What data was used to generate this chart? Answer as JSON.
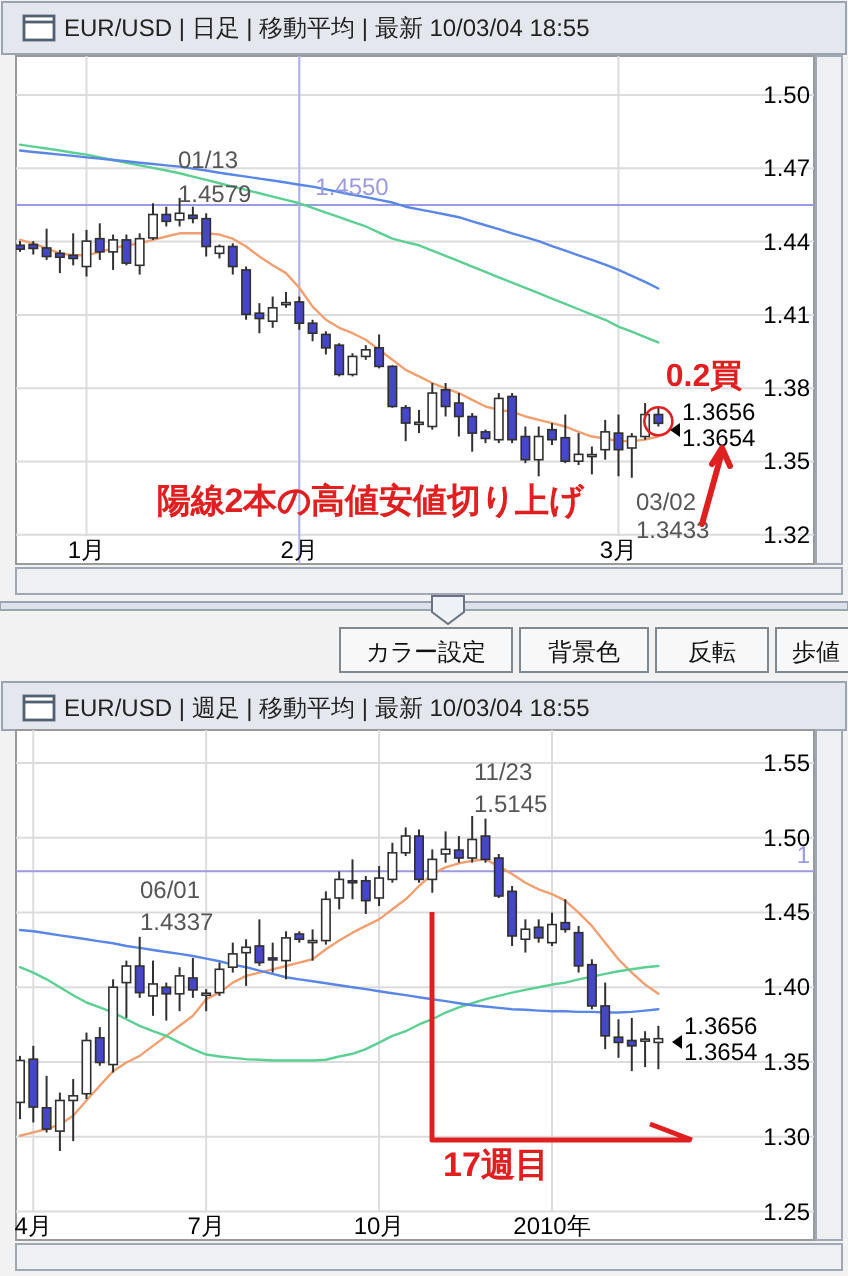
{
  "chart_data": [
    {
      "type": "candlestick",
      "title": "EUR/USD | 日足 | 移動平均 | 最新 10/03/04 18:55",
      "categories": [
        null,
        null,
        null,
        null,
        null,
        "1月",
        null,
        null,
        null,
        null,
        null,
        null,
        null,
        null,
        null,
        null,
        null,
        null,
        null,
        null,
        null,
        "2月",
        null,
        null,
        null,
        null,
        null,
        null,
        null,
        null,
        null,
        null,
        null,
        null,
        null,
        null,
        null,
        null,
        null,
        null,
        null,
        null,
        null,
        null,
        null,
        "3月",
        null,
        null,
        null
      ],
      "ylim": [
        1.308,
        1.516
      ],
      "yticks": [
        {
          "value": 1.5,
          "label": "1.50"
        },
        {
          "value": 1.47,
          "label": "1.47"
        },
        {
          "value": 1.44,
          "label": "1.44"
        },
        {
          "value": 1.41,
          "label": "1.41"
        },
        {
          "value": 1.38,
          "label": "1.38"
        },
        {
          "value": 1.35,
          "label": "1.35"
        },
        {
          "value": 1.32,
          "label": "1.32"
        }
      ],
      "grid": true,
      "ref_lines": [
        {
          "axis": "y",
          "value": 1.455,
          "label": "1.4550",
          "color": "#9a9ae0"
        },
        {
          "axis": "x",
          "value": "2月",
          "color": "#b0b0ea"
        }
      ],
      "series": [
        {
          "type": "line",
          "color": "#f0a070",
          "values": [
            1.4407,
            1.4393,
            1.4372,
            1.4352,
            1.4344,
            1.4344,
            1.4358,
            1.4372,
            1.4385,
            1.4393,
            1.4407,
            1.4421,
            1.4434,
            1.4434,
            1.4434,
            1.4429,
            1.4412,
            1.438,
            1.4339,
            1.4303,
            1.4271,
            1.4211,
            1.4134,
            1.408,
            1.4047,
            1.4025,
            1.3998,
            1.3957,
            1.3916,
            1.3875,
            1.3848,
            1.3821,
            1.3799,
            1.378,
            1.3752,
            1.3725,
            1.3711,
            1.3703,
            1.3684,
            1.367,
            1.3657,
            1.3643,
            1.3621,
            1.3602,
            1.3594,
            1.3583,
            1.3583,
            1.3589,
            1.3602
          ]
        },
        {
          "type": "line",
          "color": "#5ccf93",
          "values": [
            1.4797,
            1.4789,
            1.4781,
            1.4773,
            1.4764,
            1.4756,
            1.4745,
            1.4734,
            1.4723,
            1.4712,
            1.4702,
            1.4691,
            1.468,
            1.4666,
            1.4653,
            1.4639,
            1.4625,
            1.4612,
            1.4598,
            1.4584,
            1.4571,
            1.4557,
            1.4538,
            1.4519,
            1.45,
            1.4481,
            1.4462,
            1.4437,
            1.4412,
            1.4398,
            1.4385,
            1.4363,
            1.4342,
            1.432,
            1.4298,
            1.4276,
            1.4254,
            1.4232,
            1.4211,
            1.4189,
            1.4167,
            1.4145,
            1.4123,
            1.4101,
            1.408,
            1.4052,
            1.4031,
            1.4009,
            1.3987
          ]
        },
        {
          "type": "line",
          "color": "#5a86e6",
          "values": [
            1.4773,
            1.4767,
            1.4762,
            1.4756,
            1.4751,
            1.4745,
            1.474,
            1.4734,
            1.4729,
            1.4723,
            1.4718,
            1.4712,
            1.4707,
            1.4699,
            1.4691,
            1.4682,
            1.4674,
            1.4666,
            1.4658,
            1.465,
            1.4642,
            1.4633,
            1.4625,
            1.4614,
            1.4603,
            1.4592,
            1.4582,
            1.4571,
            1.456,
            1.4543,
            1.4532,
            1.4522,
            1.4511,
            1.45,
            1.4483,
            1.4467,
            1.4451,
            1.4434,
            1.4418,
            1.4402,
            1.4382,
            1.4363,
            1.4344,
            1.4325,
            1.4306,
            1.4284,
            1.426,
            1.4235,
            1.4208
          ]
        },
        {
          "type": "candlestick",
          "colors": [
            "#4646c8",
            "#4646c8",
            "#4646c8",
            "#4646c8",
            "#4646c8",
            "#ffffff",
            "#4646c8",
            "#ffffff",
            "#4646c8",
            "#ffffff",
            "#ffffff",
            "#4646c8",
            "#ffffff",
            "#4646c8",
            "#4646c8",
            "#ffffff",
            "#4646c8",
            "#4646c8",
            "#4646c8",
            "#ffffff",
            "#ffffff",
            "#4646c8",
            "#4646c8",
            "#4646c8",
            "#4646c8",
            "#ffffff",
            "#ffffff",
            "#4646c8",
            "#4646c8",
            "#4646c8",
            "#ffffff",
            "#ffffff",
            "#4646c8",
            "#4646c8",
            "#4646c8",
            "#4646c8",
            "#ffffff",
            "#4646c8",
            "#4646c8",
            "#ffffff",
            "#4646c8",
            "#4646c8",
            "#ffffff",
            "#ffffff",
            "#ffffff",
            "#4646c8",
            "#ffffff",
            "#ffffff",
            "#4646c8"
          ],
          "ohlc": [
            [
              1.4385,
              1.4402,
              1.4358,
              1.4369
            ],
            [
              1.4388,
              1.4402,
              1.4347,
              1.4372
            ],
            [
              1.4374,
              1.4453,
              1.4325,
              1.4339
            ],
            [
              1.4352,
              1.4366,
              1.4271,
              1.4336
            ],
            [
              1.4344,
              1.4434,
              1.4303,
              1.4331
            ],
            [
              1.4298,
              1.4448,
              1.4257,
              1.4402
            ],
            [
              1.4412,
              1.4475,
              1.4325,
              1.4358
            ],
            [
              1.4358,
              1.4429,
              1.4284,
              1.4407
            ],
            [
              1.4407,
              1.4429,
              1.4303,
              1.4312
            ],
            [
              1.4303,
              1.4434,
              1.4265,
              1.4412
            ],
            [
              1.4415,
              1.4557,
              1.4407,
              1.4511
            ],
            [
              1.4511,
              1.4543,
              1.4462,
              1.4483
            ],
            [
              1.4489,
              1.4579,
              1.4462,
              1.4516
            ],
            [
              1.4508,
              1.4543,
              1.4475,
              1.4495
            ],
            [
              1.4494,
              1.4516,
              1.4339,
              1.438
            ],
            [
              1.4352,
              1.4388,
              1.4331,
              1.438
            ],
            [
              1.438,
              1.4393,
              1.4265,
              1.4298
            ],
            [
              1.4284,
              1.4298,
              1.408,
              1.4102
            ],
            [
              1.4107,
              1.4148,
              1.4025,
              1.4085
            ],
            [
              1.4074,
              1.4175,
              1.4047,
              1.4129
            ],
            [
              1.4148,
              1.4194,
              1.4129,
              1.415
            ],
            [
              1.4153,
              1.4175,
              1.4039,
              1.4066
            ],
            [
              1.4066,
              1.408,
              1.3992,
              1.4025
            ],
            [
              1.402,
              1.4033,
              1.3938,
              1.3965
            ],
            [
              1.3976,
              1.3984,
              1.3848,
              1.3856
            ],
            [
              1.3856,
              1.3943,
              1.3848,
              1.393
            ],
            [
              1.393,
              1.3976,
              1.3916,
              1.3957
            ],
            [
              1.3965,
              1.402,
              1.3881,
              1.3889
            ],
            [
              1.3889,
              1.3894,
              1.372,
              1.3725
            ],
            [
              1.372,
              1.3731,
              1.3583,
              1.3657
            ],
            [
              1.3657,
              1.3711,
              1.3616,
              1.366
            ],
            [
              1.3643,
              1.3821,
              1.363,
              1.378
            ],
            [
              1.3793,
              1.3821,
              1.3684,
              1.3725
            ],
            [
              1.3739,
              1.378,
              1.3602,
              1.3684
            ],
            [
              1.3684,
              1.3698,
              1.354,
              1.3616
            ],
            [
              1.3621,
              1.363,
              1.3575,
              1.3594
            ],
            [
              1.3589,
              1.378,
              1.3575,
              1.3758
            ],
            [
              1.3766,
              1.378,
              1.3575,
              1.3589
            ],
            [
              1.3602,
              1.3643,
              1.3493,
              1.3507
            ],
            [
              1.3507,
              1.3643,
              1.3439,
              1.3602
            ],
            [
              1.363,
              1.3657,
              1.3567,
              1.3589
            ],
            [
              1.3597,
              1.3692,
              1.3493,
              1.3501
            ],
            [
              1.3501,
              1.3616,
              1.3485,
              1.3529
            ],
            [
              1.3526,
              1.3561,
              1.3447,
              1.3528
            ],
            [
              1.3548,
              1.367,
              1.3507,
              1.3621
            ],
            [
              1.3616,
              1.3692,
              1.3439,
              1.3548
            ],
            [
              1.3555,
              1.3616,
              1.3433,
              1.3602
            ],
            [
              1.3602,
              1.3739,
              1.3589,
              1.3692
            ],
            [
              1.3692,
              1.3719,
              1.3643,
              1.3656
            ]
          ]
        }
      ],
      "annotations": [
        "01/13",
        "1.4579",
        "03/02",
        "1.3433",
        "1.3656",
        "1.3654",
        "0.2買",
        "陽線2本の高値安値切り上げ"
      ]
    },
    {
      "type": "other",
      "annotations": [
        "カラー設定",
        "背景色",
        "反転",
        "歩値"
      ]
    },
    {
      "type": "candlestick",
      "title": "EUR/USD | 週足 | 移動平均 | 最新 10/03/04 18:55",
      "categories": [
        null,
        "4月",
        null,
        null,
        null,
        null,
        null,
        null,
        null,
        null,
        null,
        null,
        null,
        null,
        "7月",
        null,
        null,
        null,
        null,
        null,
        null,
        null,
        null,
        null,
        null,
        null,
        null,
        "10月",
        null,
        null,
        null,
        null,
        null,
        null,
        null,
        null,
        null,
        null,
        null,
        null,
        "2010年",
        null,
        null,
        null,
        null,
        null,
        null,
        null,
        null
      ],
      "ylim": [
        1.231,
        1.572
      ],
      "yticks": [
        {
          "value": 1.55,
          "label": "1.55"
        },
        {
          "value": 1.5,
          "label": "1.50"
        },
        {
          "value": 1.45,
          "label": "1.45"
        },
        {
          "value": 1.4,
          "label": "1.40"
        },
        {
          "value": 1.35,
          "label": "1.35"
        },
        {
          "value": 1.3,
          "label": "1.30"
        },
        {
          "value": 1.25,
          "label": "1.25"
        }
      ],
      "grid": true,
      "ref_lines": [
        {
          "axis": "y",
          "value": 1.4775,
          "label": "1",
          "color": "#9a9ae0"
        }
      ],
      "series": [
        {
          "type": "line",
          "color": "#f0a070",
          "values": [
            1.3007,
            1.3029,
            1.3052,
            1.3083,
            1.3141,
            1.3243,
            1.3341,
            1.3439,
            1.3497,
            1.3541,
            1.3608,
            1.3675,
            1.3742,
            1.3809,
            1.392,
            1.3964,
            1.4031,
            1.4076,
            1.4098,
            1.412,
            1.4142,
            1.4165,
            1.4187,
            1.4254,
            1.4312,
            1.4365,
            1.441,
            1.4454,
            1.4521,
            1.4588,
            1.4677,
            1.4757,
            1.4801,
            1.4828,
            1.4846,
            1.4855,
            1.481,
            1.4757,
            1.4699,
            1.4654,
            1.4623,
            1.4579,
            1.4499,
            1.441,
            1.4298,
            1.4187,
            1.4098,
            1.4018,
            1.3956
          ]
        },
        {
          "type": "line",
          "color": "#5ccf93",
          "values": [
            1.4134,
            1.4098,
            1.4053,
            1.4,
            1.3947,
            1.3898,
            1.3866,
            1.3831,
            1.3786,
            1.3742,
            1.3706,
            1.3675,
            1.363,
            1.3586,
            1.355,
            1.3537,
            1.3528,
            1.3519,
            1.3515,
            1.351,
            1.351,
            1.351,
            1.351,
            1.3515,
            1.3537,
            1.3555,
            1.3586,
            1.363,
            1.3675,
            1.3706,
            1.3751,
            1.3786,
            1.3831,
            1.3866,
            1.3893,
            1.392,
            1.3942,
            1.3964,
            1.3982,
            1.4,
            1.4018,
            1.4031,
            1.4053,
            1.4071,
            1.4089,
            1.4107,
            1.412,
            1.4134,
            1.4142
          ]
        },
        {
          "type": "line",
          "color": "#5a86e6",
          "values": [
            1.4383,
            1.4374,
            1.4361,
            1.4347,
            1.4334,
            1.4321,
            1.4307,
            1.4294,
            1.4276,
            1.4263,
            1.4249,
            1.4236,
            1.4223,
            1.4209,
            1.4191,
            1.4174,
            1.4151,
            1.4134,
            1.4111,
            1.4089,
            1.4067,
            1.4053,
            1.404,
            1.4027,
            1.4013,
            1.4,
            1.3987,
            1.3973,
            1.396,
            1.3947,
            1.3933,
            1.392,
            1.3907,
            1.3893,
            1.388,
            1.3871,
            1.3862,
            1.3853,
            1.3849,
            1.3844,
            1.384,
            1.384,
            1.3835,
            1.3835,
            1.3831,
            1.3831,
            1.3835,
            1.3844,
            1.3853
          ]
        },
        {
          "type": "candlestick",
          "colors": [
            "#ffffff",
            "#4646c8",
            "#4646c8",
            "#ffffff",
            "#ffffff",
            "#ffffff",
            "#4646c8",
            "#ffffff",
            "#ffffff",
            "#4646c8",
            "#ffffff",
            "#4646c8",
            "#ffffff",
            "#4646c8",
            "#ffffff",
            "#ffffff",
            "#ffffff",
            "#ffffff",
            "#4646c8",
            "#4646c8",
            "#ffffff",
            "#4646c8",
            "#ffffff",
            "#ffffff",
            "#ffffff",
            "#4646c8",
            "#4646c8",
            "#ffffff",
            "#ffffff",
            "#ffffff",
            "#4646c8",
            "#ffffff",
            "#ffffff",
            "#4646c8",
            "#ffffff",
            "#4646c8",
            "#4646c8",
            "#4646c8",
            "#ffffff",
            "#4646c8",
            "#ffffff",
            "#4646c8",
            "#4646c8",
            "#4646c8",
            "#4646c8",
            "#4646c8",
            "#4646c8",
            "#ffffff",
            "#ffffff"
          ],
          "ohlc": [
            [
              1.323,
              1.3541,
              1.3118,
              1.351
            ],
            [
              1.3519,
              1.3608,
              1.3096,
              1.3199
            ],
            [
              1.3194,
              1.3408,
              1.3029,
              1.3052
            ],
            [
              1.3038,
              1.3296,
              1.2905,
              1.3243
            ],
            [
              1.3243,
              1.3386,
              1.2971,
              1.3274
            ],
            [
              1.3288,
              1.3697,
              1.3252,
              1.3644
            ],
            [
              1.3662,
              1.3733,
              1.3475,
              1.3497
            ],
            [
              1.3483,
              1.4053,
              1.343,
              1.4
            ],
            [
              1.4031,
              1.4178,
              1.3795,
              1.4142
            ],
            [
              1.4142,
              1.4337,
              1.3929,
              1.3964
            ],
            [
              1.3942,
              1.4178,
              1.3809,
              1.4022
            ],
            [
              1.4,
              1.4031,
              1.3777,
              1.3956
            ],
            [
              1.3956,
              1.4134,
              1.384,
              1.4076
            ],
            [
              1.4062,
              1.4196,
              1.3929,
              1.3982
            ],
            [
              1.3956,
              1.3987,
              1.384,
              1.396
            ],
            [
              1.3964,
              1.4165,
              1.3942,
              1.412
            ],
            [
              1.4134,
              1.4298,
              1.4098,
              1.4223
            ],
            [
              1.4231,
              1.4321,
              1.4009,
              1.4267
            ],
            [
              1.4276,
              1.4454,
              1.4143,
              1.4165
            ],
            [
              1.4196,
              1.4298,
              1.4098,
              1.4192
            ],
            [
              1.4178,
              1.4374,
              1.4053,
              1.433
            ],
            [
              1.4356,
              1.4374,
              1.4298,
              1.4321
            ],
            [
              1.431,
              1.4387,
              1.4178,
              1.4312
            ],
            [
              1.4312,
              1.4641,
              1.4285,
              1.4588
            ],
            [
              1.4597,
              1.4775,
              1.4521,
              1.4721
            ],
            [
              1.4712,
              1.4855,
              1.4588,
              1.4704
            ],
            [
              1.4712,
              1.4744,
              1.449,
              1.4579
            ],
            [
              1.4597,
              1.481,
              1.4543,
              1.473
            ],
            [
              1.4721,
              1.4966,
              1.4699,
              1.4899
            ],
            [
              1.4899,
              1.5069,
              1.4877,
              1.5011
            ],
            [
              1.5011,
              1.5055,
              1.4699,
              1.4721
            ],
            [
              1.4721,
              1.4922,
              1.4632,
              1.4855
            ],
            [
              1.4891,
              1.5042,
              1.4833,
              1.4922
            ],
            [
              1.4917,
              1.5011,
              1.4833,
              1.4864
            ],
            [
              1.4864,
              1.5145,
              1.4833,
              1.4988
            ],
            [
              1.5011,
              1.5127,
              1.4833,
              1.4855
            ],
            [
              1.4864,
              1.4891,
              1.4597,
              1.461
            ],
            [
              1.4641,
              1.4677,
              1.4276,
              1.4343
            ],
            [
              1.4321,
              1.4454,
              1.4232,
              1.4388
            ],
            [
              1.4401,
              1.4454,
              1.4298,
              1.433
            ],
            [
              1.4298,
              1.4499,
              1.4276,
              1.4419
            ],
            [
              1.4432,
              1.4588,
              1.4365,
              1.4387
            ],
            [
              1.4365,
              1.441,
              1.4098,
              1.4143
            ],
            [
              1.4151,
              1.4187,
              1.3853,
              1.3875
            ],
            [
              1.3875,
              1.4031,
              1.3586,
              1.3675
            ],
            [
              1.3666,
              1.3786,
              1.3528,
              1.3631
            ],
            [
              1.3644,
              1.3795,
              1.3439,
              1.3608
            ],
            [
              1.365,
              1.3706,
              1.3466,
              1.3653
            ],
            [
              1.3631,
              1.3742,
              1.3452,
              1.3656
            ]
          ]
        }
      ],
      "annotations": [
        "06/01",
        "1.4337",
        "11/23",
        "1.5145",
        "1.3656",
        "1.3654",
        "17週目"
      ]
    }
  ]
}
